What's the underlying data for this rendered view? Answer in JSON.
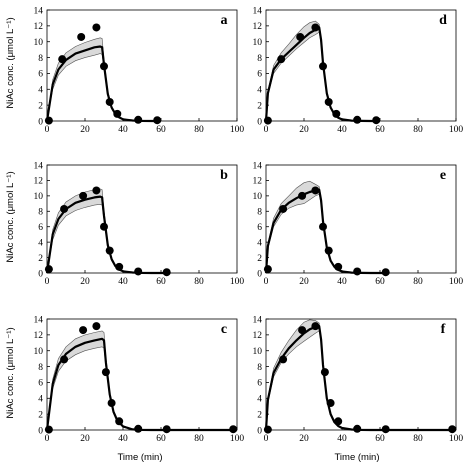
{
  "figure": {
    "ylabel": "NiAc conc. (μmol L⁻¹)",
    "xlabel": "Time (min)"
  },
  "chart_data": [
    {
      "type": "line",
      "panel": "a",
      "xlim": [
        0,
        100
      ],
      "ylim": [
        0,
        14
      ],
      "xticks": [
        0,
        20,
        40,
        60,
        80,
        100
      ],
      "yticks": [
        0,
        2,
        4,
        6,
        8,
        10,
        12,
        14
      ],
      "series": [
        {
          "role": "model",
          "x": [
            0,
            3,
            6,
            10,
            15,
            20,
            25,
            28,
            29,
            30,
            32,
            34,
            36,
            38,
            40,
            45,
            50,
            55,
            60
          ],
          "y": [
            0,
            4.6,
            6.5,
            7.7,
            8.5,
            8.9,
            9.3,
            9.4,
            9.3,
            7.1,
            3.4,
            1.7,
            0.9,
            0.45,
            0.22,
            0.06,
            0.01,
            0,
            0
          ],
          "lower": [
            0,
            4.0,
            5.8,
            6.9,
            7.6,
            8.0,
            8.3,
            8.5,
            8.4,
            6.6,
            3.1,
            1.5,
            0.75,
            0.38,
            0.18,
            0.04,
            0.01,
            0,
            0
          ],
          "upper": [
            0,
            5.2,
            7.3,
            8.6,
            9.4,
            9.9,
            10.3,
            10.5,
            10.4,
            7.8,
            3.8,
            1.9,
            1.0,
            0.55,
            0.28,
            0.08,
            0.02,
            0,
            0
          ]
        },
        {
          "role": "observed",
          "x": [
            1,
            8,
            18,
            26,
            30,
            33,
            37,
            48,
            58
          ],
          "y": [
            0.05,
            7.8,
            10.6,
            11.8,
            6.9,
            2.4,
            0.9,
            0.15,
            0.1
          ]
        }
      ]
    },
    {
      "type": "line",
      "panel": "b",
      "xlim": [
        0,
        100
      ],
      "ylim": [
        0,
        14
      ],
      "xticks": [
        0,
        20,
        40,
        60,
        80,
        100
      ],
      "yticks": [
        0,
        2,
        4,
        6,
        8,
        10,
        12,
        14
      ],
      "series": [
        {
          "role": "model",
          "x": [
            0,
            3,
            6,
            10,
            15,
            20,
            25,
            28,
            29,
            30,
            32,
            34,
            36,
            38,
            40,
            45,
            50,
            55,
            60,
            63
          ],
          "y": [
            0,
            5.0,
            7.0,
            8.3,
            9.1,
            9.5,
            9.8,
            9.9,
            9.8,
            7.4,
            3.6,
            1.8,
            0.9,
            0.45,
            0.22,
            0.06,
            0.01,
            0,
            0,
            0
          ],
          "lower": [
            0,
            4.3,
            6.2,
            7.4,
            8.1,
            8.5,
            8.8,
            8.9,
            8.8,
            6.8,
            3.2,
            1.6,
            0.75,
            0.38,
            0.18,
            0.04,
            0.01,
            0,
            0,
            0
          ],
          "upper": [
            0,
            5.6,
            7.8,
            9.2,
            10.0,
            10.5,
            10.8,
            10.9,
            10.8,
            8.1,
            4.0,
            2.0,
            1.05,
            0.55,
            0.28,
            0.08,
            0.02,
            0,
            0,
            0
          ]
        },
        {
          "role": "observed",
          "x": [
            1,
            9,
            19,
            26,
            30,
            33,
            38,
            48,
            63
          ],
          "y": [
            0.5,
            8.3,
            10.0,
            10.7,
            6.0,
            2.9,
            0.8,
            0.2,
            0.1
          ]
        }
      ]
    },
    {
      "type": "line",
      "panel": "c",
      "xlim": [
        0,
        100
      ],
      "ylim": [
        0,
        14
      ],
      "xticks": [
        0,
        20,
        40,
        60,
        80,
        100
      ],
      "yticks": [
        0,
        2,
        4,
        6,
        8,
        10,
        12,
        14
      ],
      "series": [
        {
          "role": "model",
          "x": [
            0,
            3,
            6,
            10,
            15,
            20,
            25,
            29,
            30,
            31,
            33,
            35,
            37,
            40,
            45,
            50,
            55,
            60,
            70,
            80,
            90,
            98
          ],
          "y": [
            0,
            5.8,
            8.2,
            9.6,
            10.5,
            11.0,
            11.3,
            11.5,
            11.3,
            8.5,
            4.5,
            2.3,
            1.2,
            0.45,
            0.08,
            0.01,
            0,
            0,
            0,
            0,
            0,
            0
          ],
          "lower": [
            0,
            5.2,
            7.4,
            8.7,
            9.5,
            10.0,
            10.3,
            10.5,
            10.3,
            7.8,
            4.1,
            2.1,
            1.05,
            0.38,
            0.06,
            0.01,
            0,
            0,
            0,
            0,
            0,
            0
          ],
          "upper": [
            0,
            6.4,
            9.0,
            10.5,
            11.5,
            12.0,
            12.3,
            12.5,
            12.3,
            9.2,
            4.9,
            2.5,
            1.35,
            0.55,
            0.1,
            0.02,
            0,
            0,
            0,
            0,
            0,
            0
          ]
        },
        {
          "role": "observed",
          "x": [
            1,
            9,
            19,
            26,
            31,
            34,
            38,
            48,
            63,
            98
          ],
          "y": [
            0.05,
            8.9,
            12.6,
            13.1,
            7.3,
            3.4,
            1.1,
            0.15,
            0.1,
            0.1
          ]
        }
      ]
    },
    {
      "type": "line",
      "panel": "d",
      "xlim": [
        0,
        100
      ],
      "ylim": [
        0,
        14
      ],
      "xticks": [
        0,
        20,
        40,
        60,
        80,
        100
      ],
      "yticks": [
        0,
        2,
        4,
        6,
        8,
        10,
        12,
        14
      ],
      "series": [
        {
          "role": "model",
          "x": [
            0,
            1,
            4,
            8,
            12,
            16,
            20,
            23,
            26,
            28,
            29,
            30,
            32,
            34,
            36,
            38,
            40,
            45,
            50,
            55,
            60
          ],
          "y": [
            0,
            3.5,
            6.5,
            7.8,
            8.7,
            9.6,
            10.5,
            11.1,
            11.5,
            11.8,
            10.2,
            7.3,
            3.5,
            1.7,
            0.85,
            0.42,
            0.2,
            0.05,
            0.01,
            0,
            0
          ],
          "lower": [
            0,
            3.2,
            6.0,
            7.3,
            8.2,
            9.1,
            9.9,
            10.5,
            10.9,
            11.2,
            9.7,
            7.0,
            3.3,
            1.6,
            0.78,
            0.38,
            0.18,
            0.04,
            0.01,
            0,
            0
          ],
          "upper": [
            0,
            3.8,
            7.0,
            8.6,
            9.7,
            10.9,
            11.9,
            12.4,
            12.6,
            12.2,
            10.6,
            7.6,
            3.7,
            1.8,
            0.92,
            0.46,
            0.22,
            0.06,
            0.01,
            0,
            0
          ]
        },
        {
          "role": "observed",
          "x": [
            1,
            8,
            18,
            26,
            30,
            33,
            37,
            48,
            58
          ],
          "y": [
            0.05,
            7.8,
            10.6,
            11.8,
            6.9,
            2.4,
            0.9,
            0.15,
            0.1
          ]
        }
      ]
    },
    {
      "type": "line",
      "panel": "e",
      "xlim": [
        0,
        100
      ],
      "ylim": [
        0,
        14
      ],
      "xticks": [
        0,
        20,
        40,
        60,
        80,
        100
      ],
      "yticks": [
        0,
        2,
        4,
        6,
        8,
        10,
        12,
        14
      ],
      "series": [
        {
          "role": "model",
          "x": [
            0,
            1,
            4,
            8,
            12,
            16,
            20,
            23,
            26,
            28,
            29,
            30,
            32,
            34,
            36,
            38,
            40,
            45,
            50,
            55,
            60,
            63
          ],
          "y": [
            0,
            3.5,
            6.5,
            8.2,
            9.1,
            9.7,
            10.2,
            10.5,
            10.7,
            10.8,
            9.4,
            6.7,
            3.3,
            1.6,
            0.8,
            0.4,
            0.2,
            0.05,
            0.01,
            0,
            0,
            0
          ],
          "lower": [
            0,
            3.2,
            6.0,
            7.6,
            8.4,
            8.8,
            9.0,
            9.5,
            10.0,
            10.2,
            8.9,
            6.4,
            3.1,
            1.5,
            0.74,
            0.36,
            0.18,
            0.04,
            0.01,
            0,
            0,
            0
          ],
          "upper": [
            0,
            3.8,
            7.1,
            9.0,
            10.0,
            11.0,
            11.7,
            11.9,
            11.5,
            11.2,
            9.8,
            7.0,
            3.5,
            1.7,
            0.86,
            0.44,
            0.22,
            0.06,
            0.01,
            0,
            0,
            0
          ]
        },
        {
          "role": "observed",
          "x": [
            1,
            9,
            19,
            26,
            30,
            33,
            38,
            48,
            63
          ],
          "y": [
            0.5,
            8.3,
            10.0,
            10.7,
            6.0,
            2.9,
            0.8,
            0.2,
            0.1
          ]
        }
      ]
    },
    {
      "type": "line",
      "panel": "f",
      "xlim": [
        0,
        100
      ],
      "ylim": [
        0,
        14
      ],
      "xticks": [
        0,
        20,
        40,
        60,
        80,
        100
      ],
      "yticks": [
        0,
        2,
        4,
        6,
        8,
        10,
        12,
        14
      ],
      "series": [
        {
          "role": "model",
          "x": [
            0,
            1,
            4,
            8,
            12,
            16,
            20,
            23,
            26,
            28,
            29,
            30,
            32,
            34,
            36,
            38,
            40,
            45,
            50,
            55,
            60,
            70,
            80,
            90,
            98
          ],
          "y": [
            0,
            3.8,
            7.2,
            9.0,
            10.3,
            11.3,
            12.2,
            12.7,
            13.0,
            13.1,
            11.4,
            8.2,
            4.0,
            2.0,
            1.0,
            0.5,
            0.25,
            0.06,
            0.01,
            0,
            0,
            0,
            0,
            0,
            0
          ],
          "lower": [
            0,
            3.5,
            6.7,
            8.5,
            9.6,
            10.5,
            11.2,
            11.7,
            12.2,
            12.5,
            10.9,
            7.8,
            3.8,
            1.9,
            0.93,
            0.46,
            0.23,
            0.05,
            0.01,
            0,
            0,
            0,
            0,
            0,
            0
          ],
          "upper": [
            0,
            4.1,
            7.8,
            9.8,
            11.3,
            12.6,
            13.6,
            13.9,
            13.8,
            13.5,
            11.8,
            8.5,
            4.2,
            2.1,
            1.07,
            0.54,
            0.27,
            0.07,
            0.01,
            0,
            0,
            0,
            0,
            0,
            0
          ]
        },
        {
          "role": "observed",
          "x": [
            1,
            9,
            19,
            26,
            31,
            34,
            38,
            48,
            63,
            98
          ],
          "y": [
            0.05,
            8.9,
            12.6,
            13.1,
            7.3,
            3.4,
            1.1,
            0.15,
            0.1,
            0.1
          ]
        }
      ]
    }
  ]
}
